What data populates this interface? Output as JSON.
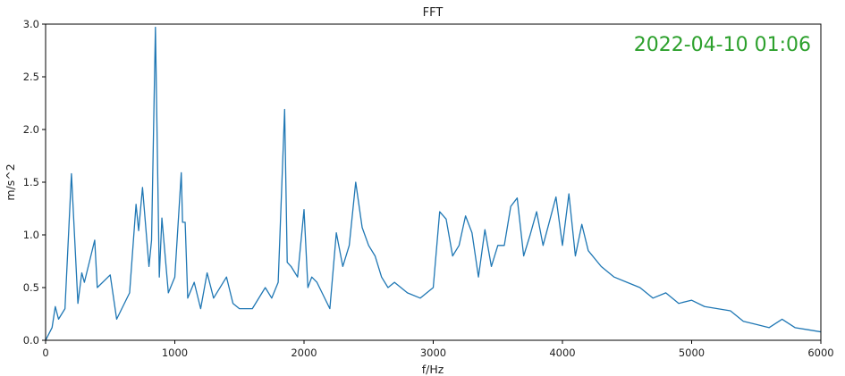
{
  "chart_data": {
    "type": "line",
    "title": "FFT",
    "xlabel": "f/Hz",
    "ylabel": "m/s^2",
    "xlim": [
      0,
      6000
    ],
    "ylim": [
      0,
      3.0
    ],
    "x_ticks": [
      "0",
      "1000",
      "2000",
      "3000",
      "4000",
      "5000",
      "6000"
    ],
    "y_ticks": [
      "0.0",
      "0.5",
      "1.0",
      "1.5",
      "2.0",
      "2.5",
      "3.0"
    ],
    "annotation": "2022-04-10 01:06",
    "annotation_color": "#2ca02c",
    "line_color": "#1f77b4",
    "grid": false,
    "series": [
      {
        "x": [
          0,
          50,
          75,
          100,
          150,
          200,
          250,
          280,
          300,
          350,
          380,
          400,
          500,
          550,
          650,
          700,
          720,
          750,
          800,
          820,
          850,
          880,
          900,
          950,
          1000,
          1050,
          1060,
          1080,
          1100,
          1150,
          1200,
          1250,
          1300,
          1400,
          1450,
          1500,
          1600,
          1700,
          1750,
          1800,
          1850,
          1870,
          1900,
          1950,
          2000,
          2030,
          2060,
          2100,
          2200,
          2250,
          2300,
          2350,
          2400,
          2450,
          2500,
          2550,
          2600,
          2650,
          2700,
          2800,
          2900,
          3000,
          3050,
          3100,
          3150,
          3200,
          3250,
          3300,
          3350,
          3400,
          3450,
          3500,
          3550,
          3600,
          3650,
          3700,
          3750,
          3800,
          3850,
          3900,
          3950,
          4000,
          4050,
          4100,
          4150,
          4200,
          4300,
          4400,
          4500,
          4600,
          4700,
          4800,
          4900,
          5000,
          5100,
          5200,
          5300,
          5400,
          5500,
          5600,
          5700,
          5800,
          5900,
          6000
        ],
        "y": [
          0.0,
          0.12,
          0.32,
          0.2,
          0.3,
          1.58,
          0.35,
          0.64,
          0.55,
          0.8,
          0.95,
          0.5,
          0.62,
          0.2,
          0.45,
          1.29,
          1.04,
          1.45,
          0.7,
          0.95,
          2.97,
          0.6,
          1.16,
          0.45,
          0.6,
          1.59,
          1.12,
          1.12,
          0.4,
          0.55,
          0.3,
          0.64,
          0.4,
          0.6,
          0.35,
          0.3,
          0.3,
          0.5,
          0.4,
          0.55,
          2.19,
          0.74,
          0.7,
          0.6,
          1.24,
          0.5,
          0.6,
          0.55,
          0.3,
          1.02,
          0.7,
          0.9,
          1.5,
          1.07,
          0.9,
          0.8,
          0.6,
          0.5,
          0.55,
          0.45,
          0.4,
          0.5,
          1.22,
          1.15,
          0.8,
          0.9,
          1.18,
          1.02,
          0.6,
          1.05,
          0.7,
          0.9,
          0.9,
          1.27,
          1.35,
          0.8,
          1.0,
          1.22,
          0.9,
          1.13,
          1.36,
          0.9,
          1.39,
          0.8,
          1.1,
          0.85,
          0.7,
          0.6,
          0.55,
          0.5,
          0.4,
          0.45,
          0.35,
          0.38,
          0.32,
          0.3,
          0.28,
          0.18,
          0.15,
          0.12,
          0.2,
          0.12,
          0.1,
          0.08
        ]
      }
    ]
  }
}
